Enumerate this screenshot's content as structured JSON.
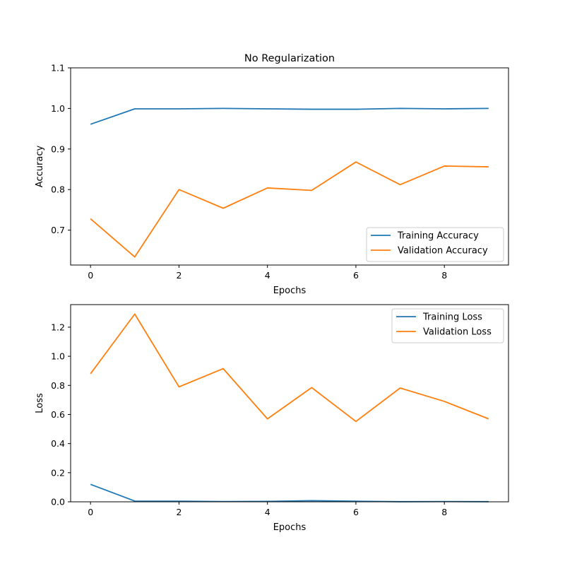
{
  "chart_data": [
    {
      "type": "line",
      "title": "No Regularization",
      "xlabel": "Epochs",
      "ylabel": "Accuracy",
      "xlim": [
        -0.45,
        9.45
      ],
      "ylim": [
        0.614,
        1.1
      ],
      "xticks": [
        0,
        2,
        4,
        6,
        8
      ],
      "yticks": [
        0.7,
        0.8,
        0.9,
        1.0,
        1.1
      ],
      "ytick_labels": [
        "0.7",
        "0.8",
        "0.9",
        "1.0",
        "1.1"
      ],
      "legend_position": "lower-right",
      "x": [
        0,
        1,
        2,
        3,
        4,
        5,
        6,
        7,
        8,
        9
      ],
      "series": [
        {
          "name": "Training Accuracy",
          "color": "#1f77b4",
          "values": [
            0.961,
            0.999,
            0.999,
            1.0,
            0.999,
            0.998,
            0.998,
            1.0,
            0.999,
            1.0
          ]
        },
        {
          "name": "Validation Accuracy",
          "color": "#ff7f0e",
          "values": [
            0.728,
            0.634,
            0.8,
            0.754,
            0.804,
            0.798,
            0.868,
            0.812,
            0.858,
            0.856
          ]
        }
      ]
    },
    {
      "type": "line",
      "title": "",
      "xlabel": "Epochs",
      "ylabel": "Loss",
      "xlim": [
        -0.45,
        9.45
      ],
      "ylim": [
        0.0,
        1.355
      ],
      "xticks": [
        0,
        2,
        4,
        6,
        8
      ],
      "yticks": [
        0.0,
        0.2,
        0.4,
        0.6,
        0.8,
        1.0,
        1.2
      ],
      "ytick_labels": [
        "0.0",
        "0.2",
        "0.4",
        "0.6",
        "0.8",
        "1.0",
        "1.2"
      ],
      "legend_position": "upper-right",
      "x": [
        0,
        1,
        2,
        3,
        4,
        5,
        6,
        7,
        8,
        9
      ],
      "series": [
        {
          "name": "Training Loss",
          "color": "#1f77b4",
          "values": [
            0.12,
            0.005,
            0.004,
            0.002,
            0.003,
            0.008,
            0.004,
            0.001,
            0.002,
            0.001
          ]
        },
        {
          "name": "Validation Loss",
          "color": "#ff7f0e",
          "values": [
            0.88,
            1.29,
            0.79,
            0.915,
            0.57,
            0.785,
            0.552,
            0.782,
            0.69,
            0.57
          ]
        }
      ]
    }
  ]
}
